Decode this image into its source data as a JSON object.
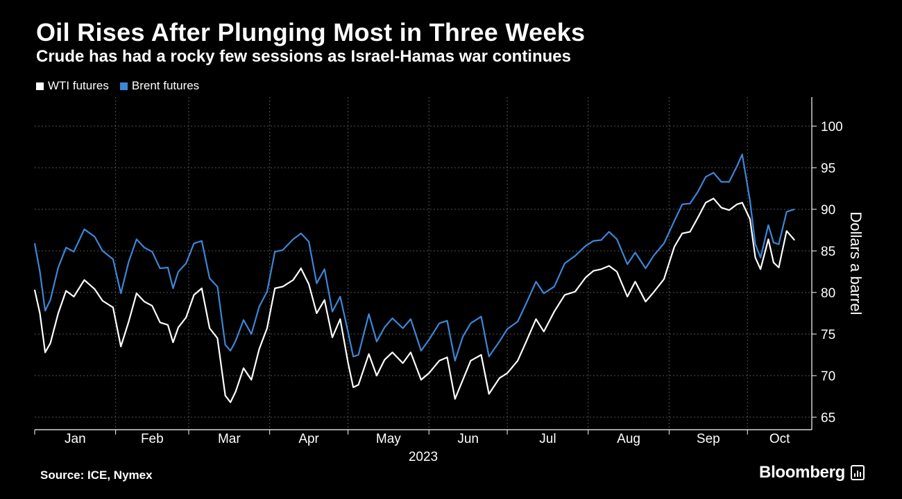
{
  "title": "Oil Rises After Plunging Most in Three Weeks",
  "subtitle": "Crude has had a rocky few sessions as Israel-Hamas war continues",
  "source": "Source: ICE, Nymex",
  "brand": "Bloomberg",
  "colors": {
    "background": "#000000",
    "wti": "#ffffff",
    "brent": "#3c87d8",
    "grid": "#555555"
  },
  "chart_data": {
    "type": "line",
    "title": "Oil Rises After Plunging Most in Three Weeks",
    "xlabel": "2023",
    "ylabel": "Dollars a barrel",
    "ylim": [
      63.5,
      103.5
    ],
    "yticks": [
      65,
      70,
      75,
      80,
      85,
      90,
      95,
      100
    ],
    "grid": true,
    "legend_position": "top-left",
    "months": [
      "Jan",
      "Feb",
      "Mar",
      "Apr",
      "May",
      "Jun",
      "Jul",
      "Aug",
      "Sep",
      "Oct"
    ],
    "x_range": [
      "2023-01-01",
      "2023-10-19"
    ],
    "series": [
      {
        "name": "WTI futures",
        "color": "#ffffff",
        "x": [
          "2023-01-01",
          "2023-01-03",
          "2023-01-05",
          "2023-01-07",
          "2023-01-10",
          "2023-01-13",
          "2023-01-16",
          "2023-01-20",
          "2023-01-24",
          "2023-01-27",
          "2023-01-31",
          "2023-02-03",
          "2023-02-06",
          "2023-02-09",
          "2023-02-12",
          "2023-02-15",
          "2023-02-18",
          "2023-02-21",
          "2023-02-23",
          "2023-02-25",
          "2023-02-28",
          "2023-03-03",
          "2023-03-06",
          "2023-03-09",
          "2023-03-12",
          "2023-03-15",
          "2023-03-17",
          "2023-03-19",
          "2023-03-22",
          "2023-03-25",
          "2023-03-28",
          "2023-03-31",
          "2023-04-03",
          "2023-04-06",
          "2023-04-10",
          "2023-04-13",
          "2023-04-16",
          "2023-04-19",
          "2023-04-22",
          "2023-04-25",
          "2023-04-28",
          "2023-05-01",
          "2023-05-03",
          "2023-05-05",
          "2023-05-09",
          "2023-05-12",
          "2023-05-15",
          "2023-05-18",
          "2023-05-22",
          "2023-05-25",
          "2023-05-29",
          "2023-06-01",
          "2023-06-05",
          "2023-06-08",
          "2023-06-11",
          "2023-06-14",
          "2023-06-17",
          "2023-06-21",
          "2023-06-24",
          "2023-06-28",
          "2023-07-01",
          "2023-07-05",
          "2023-07-08",
          "2023-07-12",
          "2023-07-15",
          "2023-07-19",
          "2023-07-23",
          "2023-07-27",
          "2023-07-31",
          "2023-08-03",
          "2023-08-06",
          "2023-08-09",
          "2023-08-12",
          "2023-08-16",
          "2023-08-19",
          "2023-08-23",
          "2023-08-26",
          "2023-08-30",
          "2023-09-03",
          "2023-09-06",
          "2023-09-09",
          "2023-09-12",
          "2023-09-15",
          "2023-09-18",
          "2023-09-21",
          "2023-09-24",
          "2023-09-27",
          "2023-09-29",
          "2023-10-02",
          "2023-10-04",
          "2023-10-06",
          "2023-10-09",
          "2023-10-11",
          "2023-10-13",
          "2023-10-16",
          "2023-10-19"
        ],
        "values": [
          80.3,
          77.5,
          72.8,
          73.9,
          77.5,
          80.2,
          79.5,
          81.5,
          80.4,
          79.0,
          78.2,
          73.5,
          76.5,
          79.9,
          78.9,
          78.4,
          76.4,
          76.1,
          74.0,
          75.8,
          77.0,
          79.7,
          80.5,
          75.7,
          74.5,
          67.6,
          66.8,
          68.1,
          70.9,
          69.5,
          73.2,
          75.7,
          80.5,
          80.7,
          81.5,
          82.9,
          81.0,
          77.5,
          79.1,
          74.6,
          76.8,
          71.6,
          68.6,
          68.9,
          72.6,
          70.0,
          71.9,
          72.8,
          71.5,
          72.8,
          69.5,
          70.3,
          71.8,
          72.2,
          67.2,
          69.5,
          71.8,
          72.5,
          67.8,
          69.7,
          70.3,
          71.8,
          73.9,
          76.8,
          75.3,
          77.7,
          79.7,
          80.1,
          81.8,
          82.6,
          82.8,
          83.2,
          82.5,
          79.5,
          81.3,
          78.9,
          80.0,
          81.6,
          85.5,
          87.1,
          87.3,
          89.0,
          90.8,
          91.3,
          90.2,
          89.9,
          90.6,
          90.8,
          88.8,
          84.2,
          82.8,
          86.4,
          83.6,
          83.0,
          87.4,
          86.3
        ]
      },
      {
        "name": "Brent futures",
        "color": "#3c87d8",
        "x": [
          "2023-01-01",
          "2023-01-03",
          "2023-01-05",
          "2023-01-07",
          "2023-01-10",
          "2023-01-13",
          "2023-01-16",
          "2023-01-20",
          "2023-01-24",
          "2023-01-27",
          "2023-01-31",
          "2023-02-03",
          "2023-02-06",
          "2023-02-09",
          "2023-02-12",
          "2023-02-15",
          "2023-02-18",
          "2023-02-21",
          "2023-02-23",
          "2023-02-25",
          "2023-02-28",
          "2023-03-03",
          "2023-03-06",
          "2023-03-09",
          "2023-03-12",
          "2023-03-15",
          "2023-03-17",
          "2023-03-19",
          "2023-03-22",
          "2023-03-25",
          "2023-03-28",
          "2023-03-31",
          "2023-04-03",
          "2023-04-06",
          "2023-04-10",
          "2023-04-13",
          "2023-04-16",
          "2023-04-19",
          "2023-04-22",
          "2023-04-25",
          "2023-04-28",
          "2023-05-01",
          "2023-05-03",
          "2023-05-05",
          "2023-05-09",
          "2023-05-12",
          "2023-05-15",
          "2023-05-18",
          "2023-05-22",
          "2023-05-25",
          "2023-05-29",
          "2023-06-01",
          "2023-06-05",
          "2023-06-08",
          "2023-06-11",
          "2023-06-14",
          "2023-06-17",
          "2023-06-21",
          "2023-06-24",
          "2023-06-28",
          "2023-07-01",
          "2023-07-05",
          "2023-07-08",
          "2023-07-12",
          "2023-07-15",
          "2023-07-19",
          "2023-07-23",
          "2023-07-27",
          "2023-07-31",
          "2023-08-03",
          "2023-08-06",
          "2023-08-09",
          "2023-08-12",
          "2023-08-16",
          "2023-08-19",
          "2023-08-23",
          "2023-08-26",
          "2023-08-30",
          "2023-09-03",
          "2023-09-06",
          "2023-09-09",
          "2023-09-12",
          "2023-09-15",
          "2023-09-18",
          "2023-09-21",
          "2023-09-24",
          "2023-09-27",
          "2023-09-29",
          "2023-10-02",
          "2023-10-04",
          "2023-10-06",
          "2023-10-09",
          "2023-10-11",
          "2023-10-13",
          "2023-10-16",
          "2023-10-19"
        ],
        "values": [
          85.9,
          82.5,
          77.8,
          79.1,
          83.0,
          85.4,
          84.9,
          87.6,
          86.7,
          85.0,
          84.0,
          79.9,
          83.7,
          86.4,
          85.4,
          84.9,
          82.9,
          83.0,
          80.5,
          82.5,
          83.5,
          85.9,
          86.2,
          81.7,
          80.7,
          73.7,
          73.0,
          74.2,
          76.7,
          75.0,
          78.3,
          80.1,
          84.9,
          85.1,
          86.4,
          87.1,
          86.1,
          81.1,
          82.8,
          77.7,
          79.5,
          75.3,
          72.3,
          72.5,
          77.4,
          74.1,
          75.8,
          76.9,
          75.7,
          76.8,
          73.0,
          74.3,
          76.3,
          76.6,
          71.8,
          74.7,
          76.3,
          77.1,
          72.3,
          74.1,
          75.6,
          76.5,
          78.5,
          81.3,
          79.9,
          80.7,
          83.5,
          84.4,
          85.6,
          86.2,
          86.3,
          87.3,
          86.4,
          83.4,
          84.8,
          82.9,
          84.4,
          85.9,
          88.6,
          90.6,
          90.7,
          92.1,
          93.9,
          94.4,
          93.3,
          93.3,
          95.2,
          96.6,
          91.0,
          85.8,
          84.2,
          88.1,
          86.0,
          85.8,
          89.7,
          90.0
        ]
      }
    ]
  }
}
